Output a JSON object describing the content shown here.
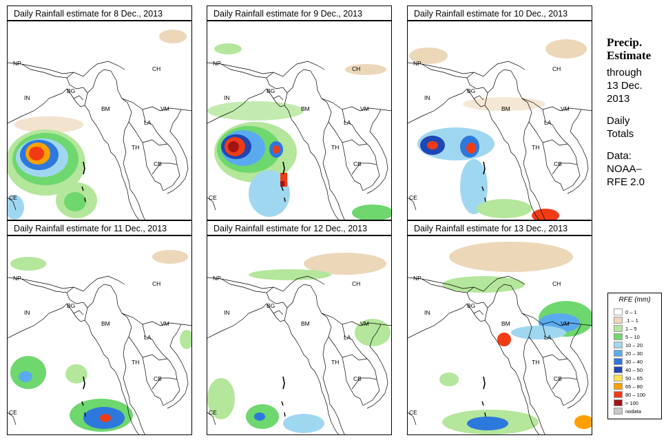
{
  "panels": [
    {
      "title": "Daily Rainfall estimate for  8 Dec., 2013"
    },
    {
      "title": "Daily Rainfall estimate for  9 Dec., 2013"
    },
    {
      "title": "Daily Rainfall estimate for  10 Dec., 2013"
    },
    {
      "title": "Daily Rainfall estimate for  11 Dec., 2013"
    },
    {
      "title": "Daily Rainfall estimate for  12 Dec., 2013"
    },
    {
      "title": "Daily Rainfall estimate for  13 Dec., 2013"
    }
  ],
  "map_labels": {
    "np": "NP",
    "ch": "CH",
    "in": "IN",
    "bg": "BG",
    "bm": "BM",
    "vm": "VM",
    "la": "LA",
    "th": "TH",
    "cb": "CB",
    "ce": "CE"
  },
  "side": {
    "heading1": "Precip.",
    "heading2": "Estimate",
    "through": "through",
    "date1": "13 Dec.",
    "date2": "2013",
    "daily1": "Daily",
    "daily2": "Totals",
    "data1": "Data:",
    "data2": "NOAA–",
    "data3": "RFE 2.0"
  },
  "legend": {
    "title": "RFE (mm)",
    "items": [
      {
        "label": "0 – 1",
        "color": "#ffffff"
      },
      {
        "label": ".1 – 1",
        "color": "#ecd7b9"
      },
      {
        "label": "1 – 5",
        "color": "#b4e69b"
      },
      {
        "label": "5 – 10",
        "color": "#6ed76e"
      },
      {
        "label": "10 – 20",
        "color": "#a0d7f0"
      },
      {
        "label": "20 – 30",
        "color": "#5aaaf0"
      },
      {
        "label": "30 – 40",
        "color": "#2d78dc"
      },
      {
        "label": "40 – 50",
        "color": "#1e46b4"
      },
      {
        "label": "50 – 65",
        "color": "#ffe150"
      },
      {
        "label": "65 – 80",
        "color": "#ffa000"
      },
      {
        "label": "80 – 100",
        "color": "#f03c14"
      },
      {
        "label": "> 100",
        "color": "#a01414"
      },
      {
        "label": "nodata",
        "color": "#c8c8c8"
      }
    ]
  }
}
